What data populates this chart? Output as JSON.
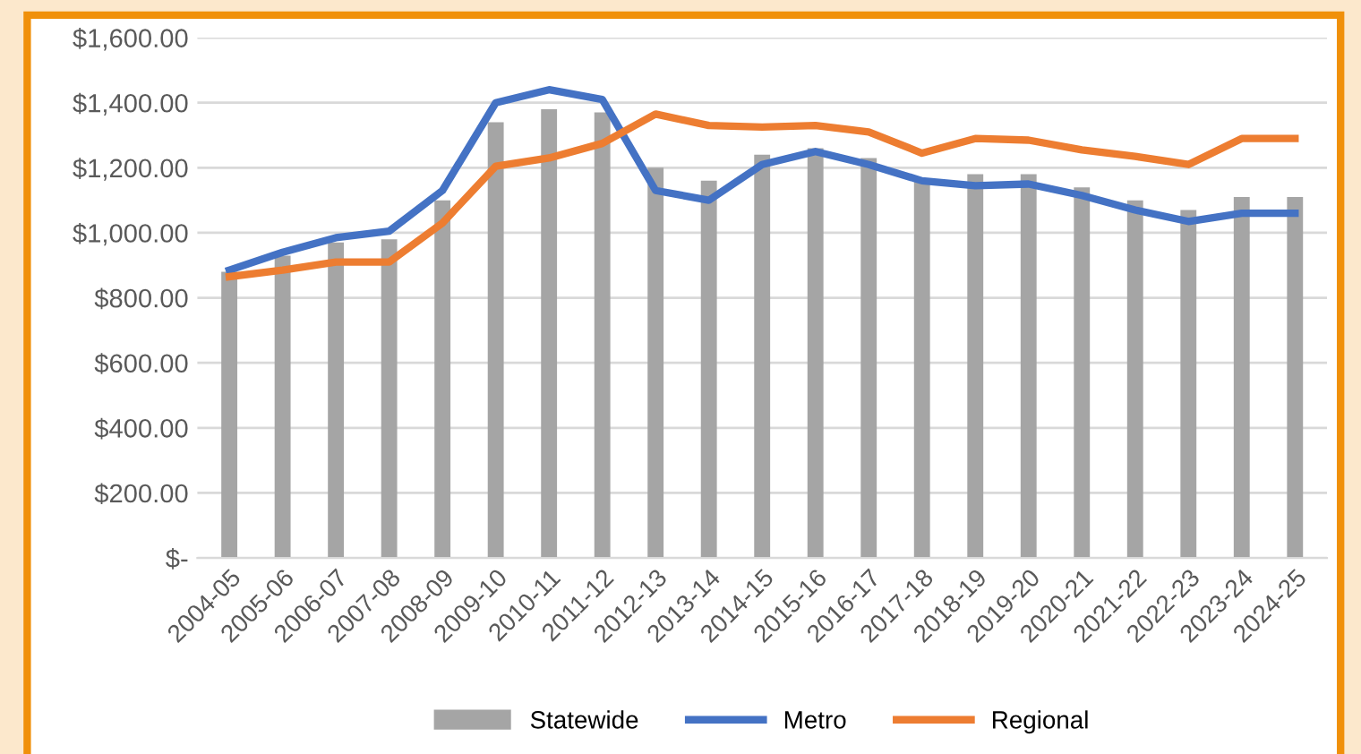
{
  "chart_data": {
    "type": "bar",
    "categories": [
      "2004-05",
      "2005-06",
      "2006-07",
      "2007-08",
      "2008-09",
      "2009-10",
      "2010-11",
      "2011-12",
      "2012-13",
      "2013-14",
      "2014-15",
      "2015-16",
      "2016-17",
      "2017-18",
      "2018-19",
      "2019-20",
      "2020-21",
      "2021-22",
      "2022-23",
      "2023-24",
      "2024-25"
    ],
    "series": [
      {
        "name": "Statewide",
        "color": "#a5a5a5",
        "values": [
          880,
          930,
          970,
          980,
          1100,
          1340,
          1380,
          1370,
          1200,
          1160,
          1240,
          1260,
          1230,
          1160,
          1180,
          1180,
          1140,
          1100,
          1070,
          1110,
          1110
        ]
      },
      {
        "name": "Metro",
        "type": "line",
        "color": "#4472c4",
        "values": [
          885,
          940,
          985,
          1005,
          1130,
          1400,
          1440,
          1410,
          1130,
          1100,
          1210,
          1250,
          1210,
          1160,
          1145,
          1150,
          1115,
          1070,
          1035,
          1060,
          1060
        ]
      },
      {
        "name": "Regional",
        "type": "line",
        "color": "#ed7d31",
        "values": [
          865,
          885,
          910,
          910,
          1030,
          1205,
          1230,
          1275,
          1365,
          1330,
          1325,
          1330,
          1310,
          1245,
          1290,
          1285,
          1255,
          1235,
          1210,
          1290,
          1290
        ]
      }
    ],
    "ylim": [
      0,
      1600
    ],
    "yticks": [
      {
        "value": 0,
        "label": "$-"
      },
      {
        "value": 200,
        "label": "$200.00"
      },
      {
        "value": 400,
        "label": "$400.00"
      },
      {
        "value": 600,
        "label": "$600.00"
      },
      {
        "value": 800,
        "label": "$800.00"
      },
      {
        "value": 1000,
        "label": "$1,000.00"
      },
      {
        "value": 1200,
        "label": "$1,200.00"
      },
      {
        "value": 1400,
        "label": "$1,400.00"
      },
      {
        "value": 1600,
        "label": "$1,600.00"
      }
    ],
    "grid": "y",
    "legend": "bottom",
    "marker": "none",
    "line_style": "solid"
  }
}
